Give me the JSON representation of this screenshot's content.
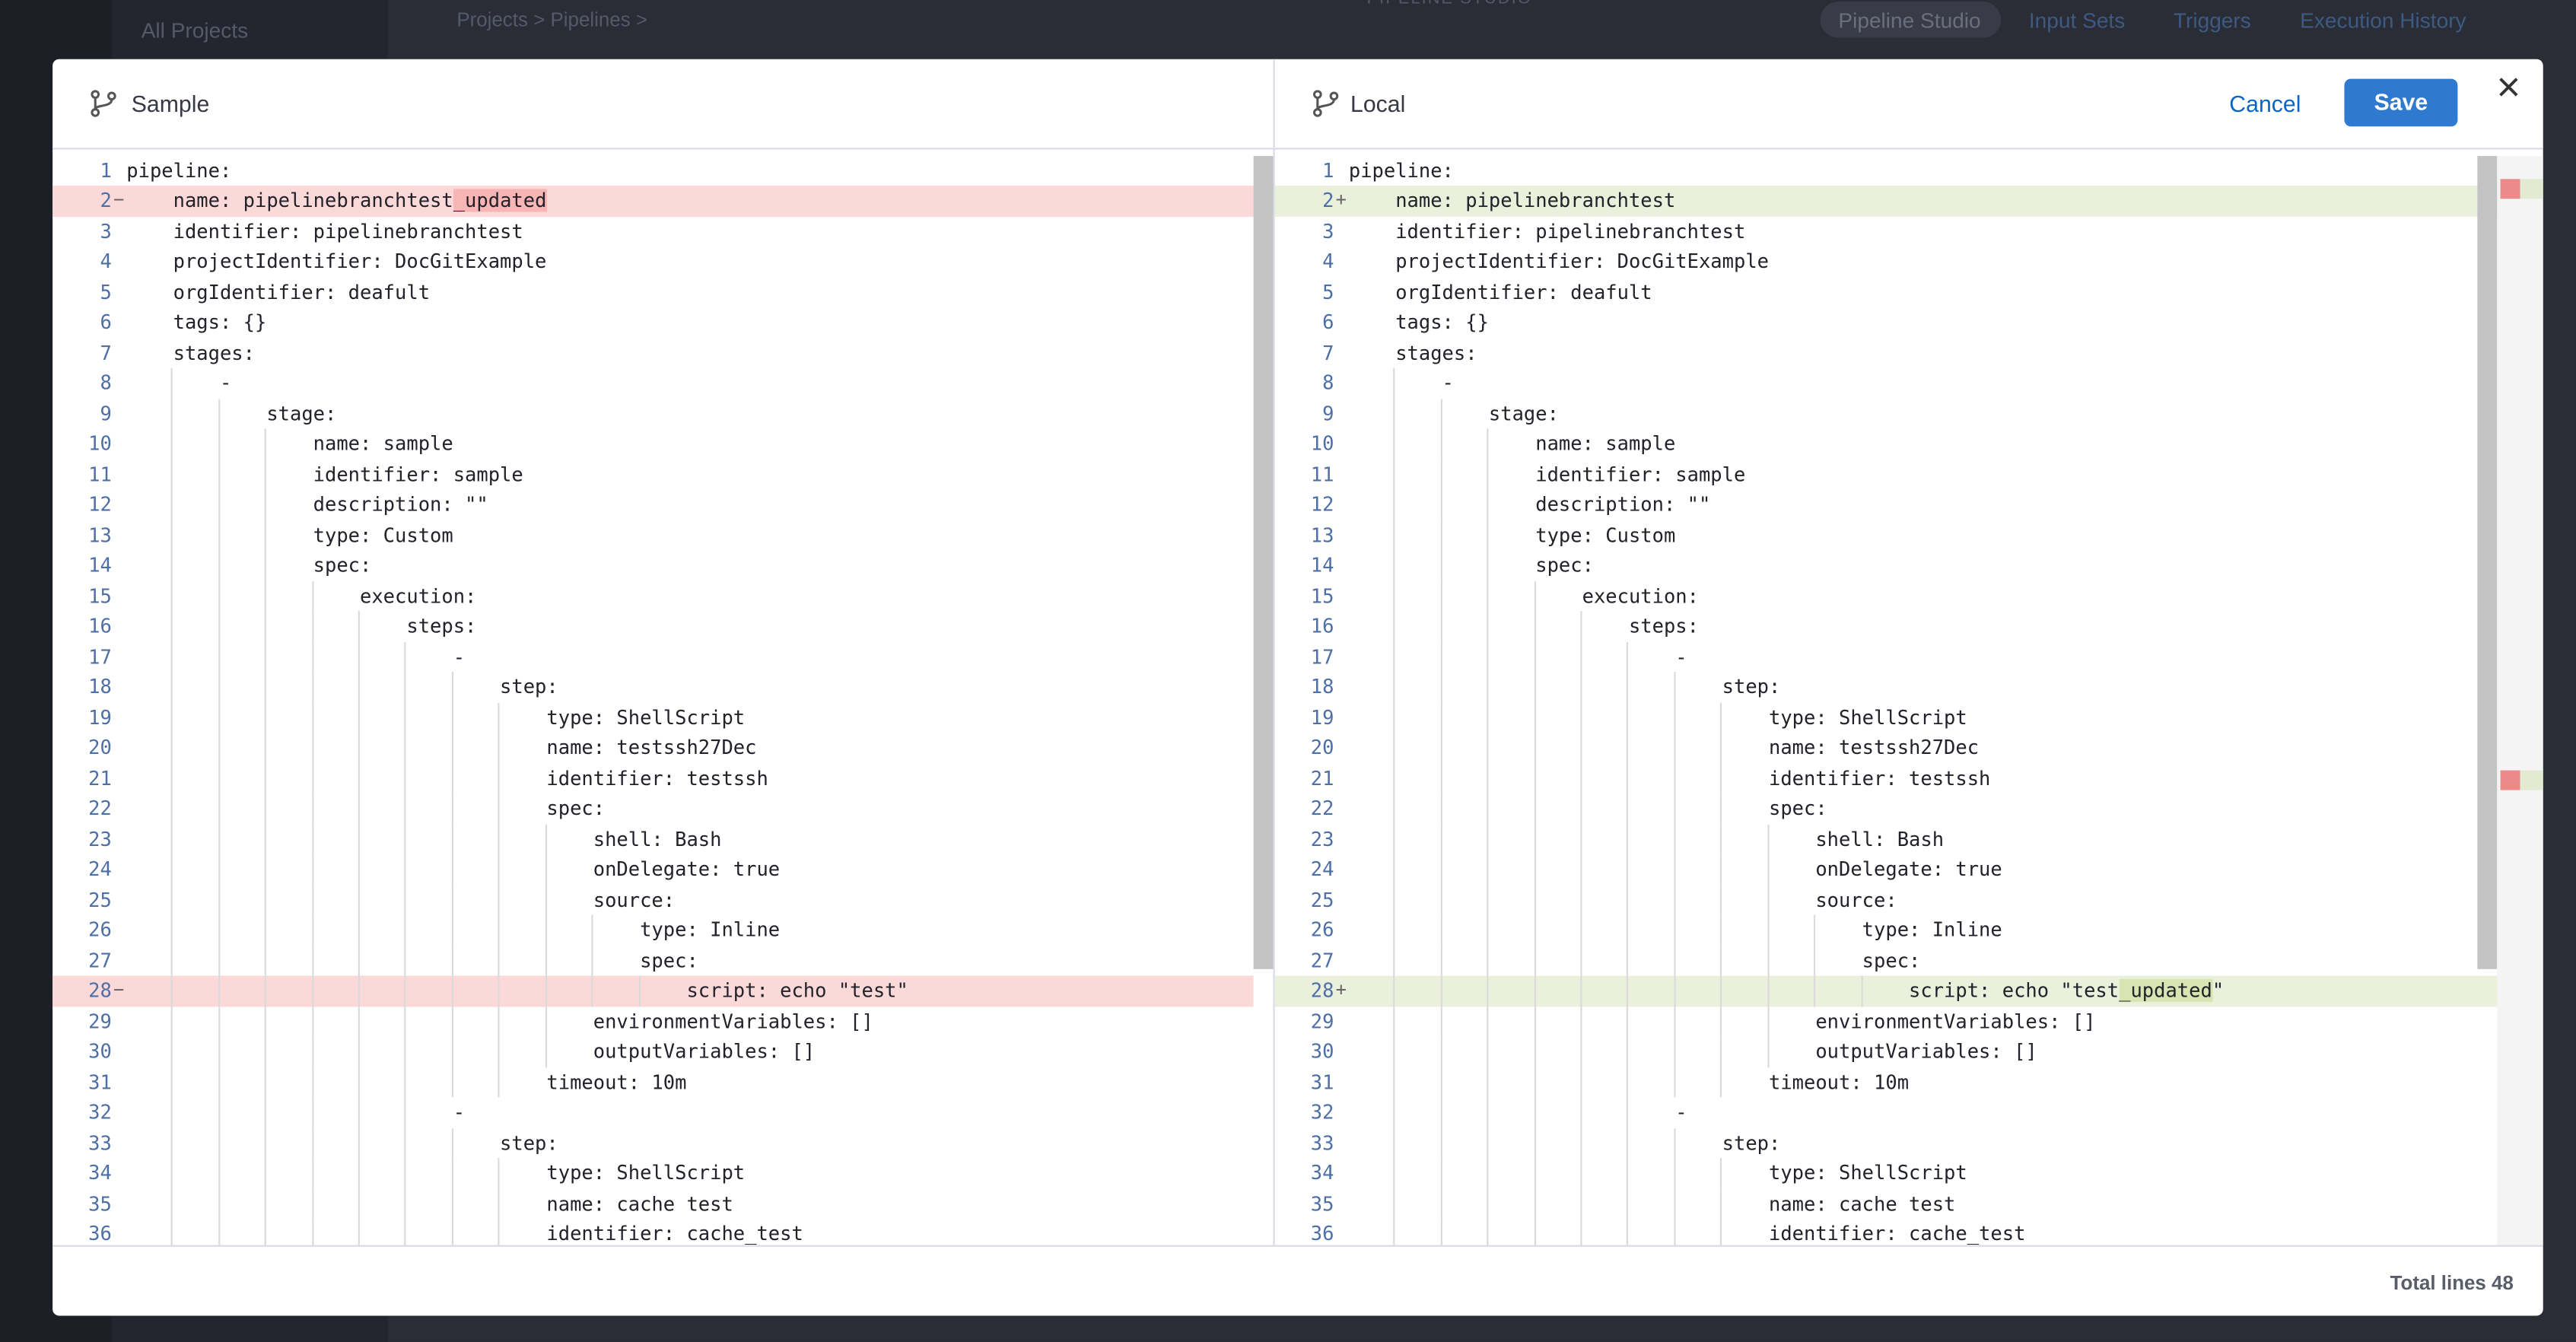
{
  "background": {
    "sidebar_title": "All Projects",
    "breadcrumb": [
      "Projects",
      "Pipelines"
    ],
    "page_title": "PIPELINE STUDIO",
    "tabs": [
      "Pipeline Studio",
      "Input Sets",
      "Triggers",
      "Execution History"
    ]
  },
  "dialog": {
    "panes": [
      {
        "title": "Sample",
        "lines": [
          {
            "n": 1,
            "text": "pipeline:"
          },
          {
            "n": 2,
            "marker": "−",
            "change": "removed",
            "text": [
              "    name: pipelinebranchtest",
              "_updated"
            ]
          },
          {
            "n": 3,
            "text": "    identifier: pipelinebranchtest"
          },
          {
            "n": 4,
            "text": "    projectIdentifier: DocGitExample"
          },
          {
            "n": 5,
            "text": "    orgIdentifier: deafult"
          },
          {
            "n": 6,
            "text": "    tags: {}"
          },
          {
            "n": 7,
            "text": "    stages:"
          },
          {
            "n": 8,
            "text": "        -"
          },
          {
            "n": 9,
            "text": "            stage:"
          },
          {
            "n": 10,
            "text": "                name: sample"
          },
          {
            "n": 11,
            "text": "                identifier: sample"
          },
          {
            "n": 12,
            "text": "                description: \"\""
          },
          {
            "n": 13,
            "text": "                type: Custom"
          },
          {
            "n": 14,
            "text": "                spec:"
          },
          {
            "n": 15,
            "text": "                    execution:"
          },
          {
            "n": 16,
            "text": "                        steps:"
          },
          {
            "n": 17,
            "text": "                            -"
          },
          {
            "n": 18,
            "text": "                                step:"
          },
          {
            "n": 19,
            "text": "                                    type: ShellScript"
          },
          {
            "n": 20,
            "text": "                                    name: testssh27Dec"
          },
          {
            "n": 21,
            "text": "                                    identifier: testssh"
          },
          {
            "n": 22,
            "text": "                                    spec:"
          },
          {
            "n": 23,
            "text": "                                        shell: Bash"
          },
          {
            "n": 24,
            "text": "                                        onDelegate: true"
          },
          {
            "n": 25,
            "text": "                                        source:"
          },
          {
            "n": 26,
            "text": "                                            type: Inline"
          },
          {
            "n": 27,
            "text": "                                            spec:"
          },
          {
            "n": 28,
            "marker": "−",
            "change": "removed",
            "text": "                                                script: echo \"test\""
          },
          {
            "n": 29,
            "text": "                                        environmentVariables: []"
          },
          {
            "n": 30,
            "text": "                                        outputVariables: []"
          },
          {
            "n": 31,
            "text": "                                    timeout: 10m"
          },
          {
            "n": 32,
            "text": "                            -"
          },
          {
            "n": 33,
            "text": "                                step:"
          },
          {
            "n": 34,
            "text": "                                    type: ShellScript"
          },
          {
            "n": 35,
            "text": "                                    name: cache test"
          },
          {
            "n": 36,
            "text": "                                    identifier: cache_test"
          }
        ]
      },
      {
        "title": "Local",
        "lines": [
          {
            "n": 1,
            "text": "pipeline:"
          },
          {
            "n": 2,
            "marker": "+",
            "change": "added",
            "text": "    name: pipelinebranchtest"
          },
          {
            "n": 3,
            "text": "    identifier: pipelinebranchtest"
          },
          {
            "n": 4,
            "text": "    projectIdentifier: DocGitExample"
          },
          {
            "n": 5,
            "text": "    orgIdentifier: deafult"
          },
          {
            "n": 6,
            "text": "    tags: {}"
          },
          {
            "n": 7,
            "text": "    stages:"
          },
          {
            "n": 8,
            "text": "        -"
          },
          {
            "n": 9,
            "text": "            stage:"
          },
          {
            "n": 10,
            "text": "                name: sample"
          },
          {
            "n": 11,
            "text": "                identifier: sample"
          },
          {
            "n": 12,
            "text": "                description: \"\""
          },
          {
            "n": 13,
            "text": "                type: Custom"
          },
          {
            "n": 14,
            "text": "                spec:"
          },
          {
            "n": 15,
            "text": "                    execution:"
          },
          {
            "n": 16,
            "text": "                        steps:"
          },
          {
            "n": 17,
            "text": "                            -"
          },
          {
            "n": 18,
            "text": "                                step:"
          },
          {
            "n": 19,
            "text": "                                    type: ShellScript"
          },
          {
            "n": 20,
            "text": "                                    name: testssh27Dec"
          },
          {
            "n": 21,
            "text": "                                    identifier: testssh"
          },
          {
            "n": 22,
            "text": "                                    spec:"
          },
          {
            "n": 23,
            "text": "                                        shell: Bash"
          },
          {
            "n": 24,
            "text": "                                        onDelegate: true"
          },
          {
            "n": 25,
            "text": "                                        source:"
          },
          {
            "n": 26,
            "text": "                                            type: Inline"
          },
          {
            "n": 27,
            "text": "                                            spec:"
          },
          {
            "n": 28,
            "marker": "+",
            "change": "added",
            "text": [
              "                                                script: echo \"test",
              "_updated",
              "\""
            ]
          },
          {
            "n": 29,
            "text": "                                        environmentVariables: []"
          },
          {
            "n": 30,
            "text": "                                        outputVariables: []"
          },
          {
            "n": 31,
            "text": "                                    timeout: 10m"
          },
          {
            "n": 32,
            "text": "                            -"
          },
          {
            "n": 33,
            "text": "                                step:"
          },
          {
            "n": 34,
            "text": "                                    type: ShellScript"
          },
          {
            "n": 35,
            "text": "                                    name: cache test"
          },
          {
            "n": 36,
            "text": "                                    identifier: cache_test"
          }
        ]
      }
    ],
    "actions": {
      "cancel": "Cancel",
      "save": "Save"
    },
    "footer": "Total lines 48"
  }
}
